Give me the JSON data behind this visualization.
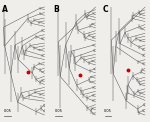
{
  "bg_color": "#f0eeeb",
  "panel_labels": [
    "A",
    "B",
    "C"
  ],
  "line_color": "#555555",
  "red_dot_color": "#cc0000",
  "scale_bar_label": "0.05",
  "fig_width": 1.5,
  "fig_height": 1.22,
  "dpi": 100
}
